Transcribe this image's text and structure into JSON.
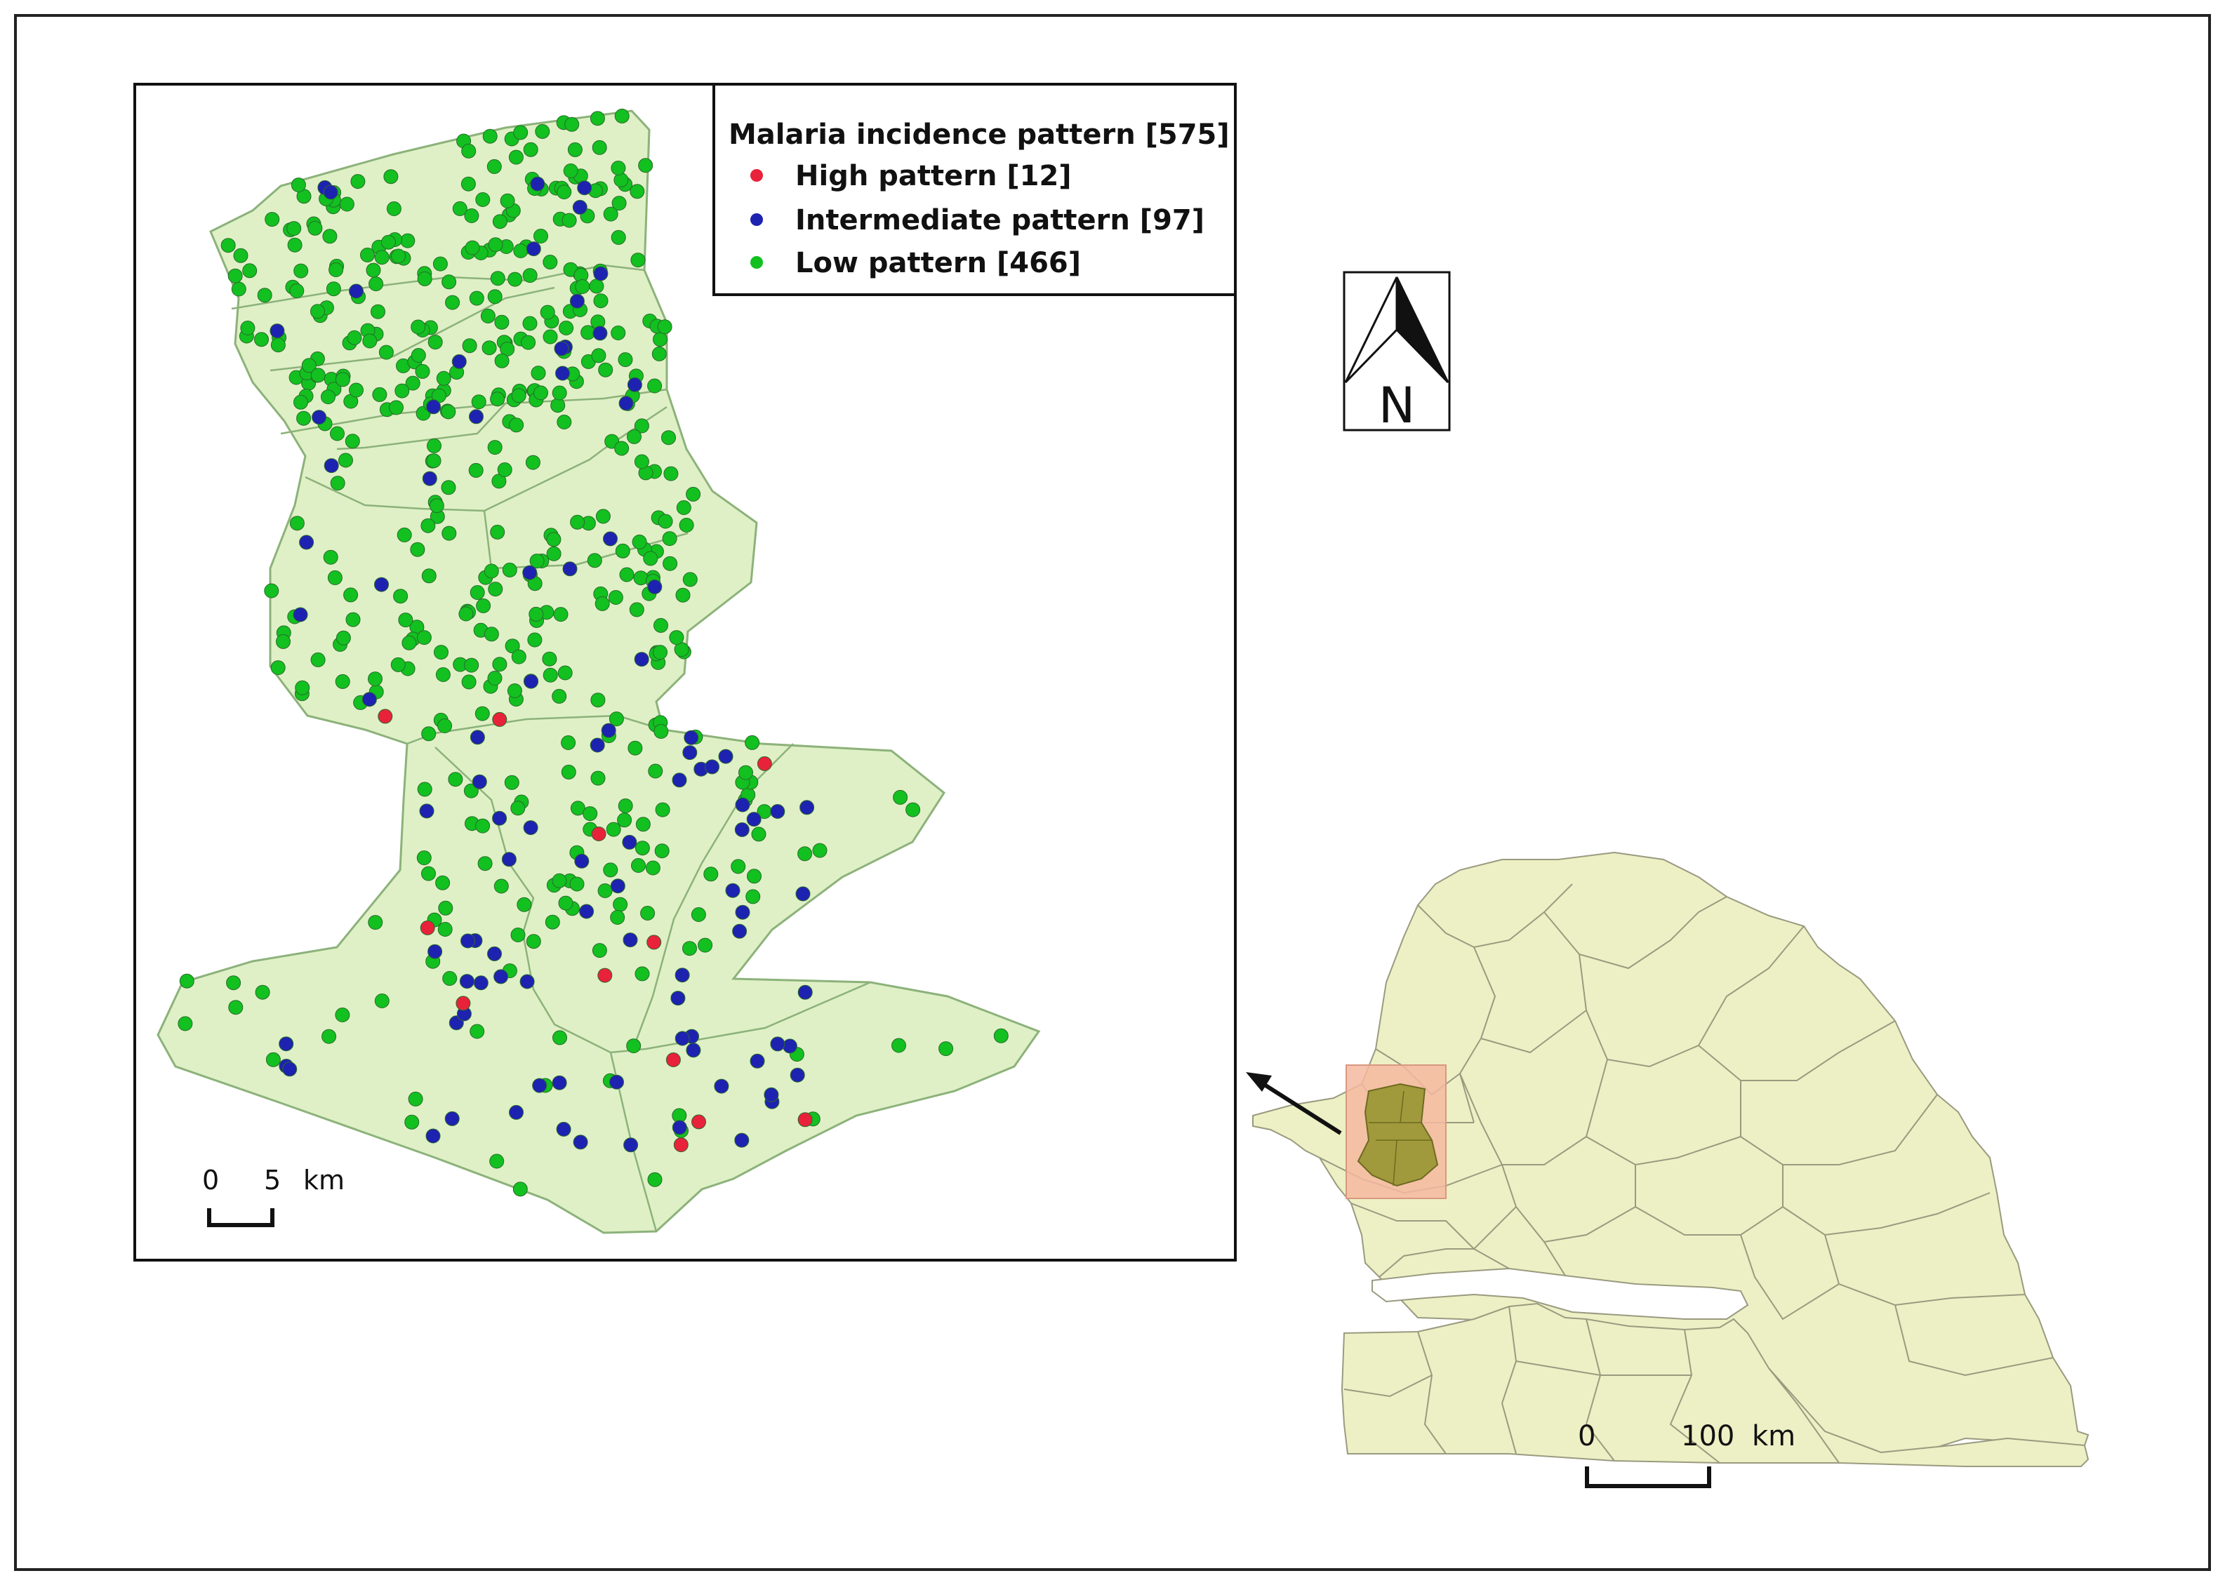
{
  "legend": {
    "title": "Malaria incidence pattern [575]",
    "items": [
      {
        "label": "High pattern [12]",
        "color": "#e8223a"
      },
      {
        "label": "Intermediate pattern [97]",
        "color": "#1e22b0"
      },
      {
        "label": "Low pattern [466]",
        "color": "#12c020"
      }
    ]
  },
  "north_arrow": {
    "label": "N"
  },
  "inset_scale": {
    "start": "0",
    "end": "5",
    "unit": "km"
  },
  "country_scale": {
    "start": "0",
    "end": "100",
    "unit": "km"
  },
  "colors": {
    "study_fill": "#dff0c6",
    "study_stroke": "#8cb27a",
    "country_fill": "#edf0c4",
    "country_stroke": "#9a9a80",
    "highlight_box": "#f4b9a0",
    "highlight_region": "#a09a3c"
  }
}
